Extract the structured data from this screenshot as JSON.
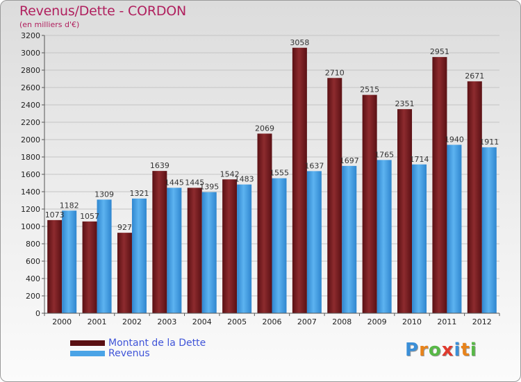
{
  "header": {
    "title": "Revenus/Dette - CORDON",
    "subtitle": "(en milliers d'€)"
  },
  "chart_data": {
    "type": "bar",
    "title": "Revenus/Dette - CORDON",
    "subtitle": "(en milliers d'€)",
    "categories": [
      "2000",
      "2001",
      "2002",
      "2003",
      "2004",
      "2005",
      "2006",
      "2007",
      "2008",
      "2009",
      "2010",
      "2011",
      "2012"
    ],
    "series": [
      {
        "name": "Montant de la Dette",
        "color": "#7b1f22",
        "values": [
          1073,
          1057,
          927,
          1639,
          1445,
          1542,
          2069,
          3058,
          2710,
          2515,
          2351,
          2951,
          2671
        ]
      },
      {
        "name": "Revenus",
        "color": "#4aa3e6",
        "values": [
          1182,
          1309,
          1321,
          1445,
          1395,
          1483,
          1555,
          1637,
          1697,
          1765,
          1714,
          1940,
          1911
        ]
      }
    ],
    "ylim": [
      0,
      3200
    ],
    "yticks": [
      0,
      200,
      400,
      600,
      800,
      1000,
      1200,
      1400,
      1600,
      1800,
      2000,
      2200,
      2400,
      2600,
      2800,
      3000,
      3200
    ],
    "grid": true,
    "legend_position": "bottom-left"
  },
  "legend": {
    "items": [
      {
        "label": "Montant de la Dette",
        "color": "#5a0f12"
      },
      {
        "label": "Revenus",
        "color": "#4aa3e6"
      }
    ]
  },
  "logo": {
    "text": "Proxiti",
    "letters": [
      {
        "ch": "P",
        "color": "#3a8fd8"
      },
      {
        "ch": "r",
        "color": "#e8831a"
      },
      {
        "ch": "o",
        "color": "#57b846"
      },
      {
        "ch": "x",
        "color": "#e03a2e"
      },
      {
        "ch": "i",
        "color": "#3a8fd8"
      },
      {
        "ch": "t",
        "color": "#e8831a"
      },
      {
        "ch": "i",
        "color": "#57b846"
      }
    ]
  }
}
